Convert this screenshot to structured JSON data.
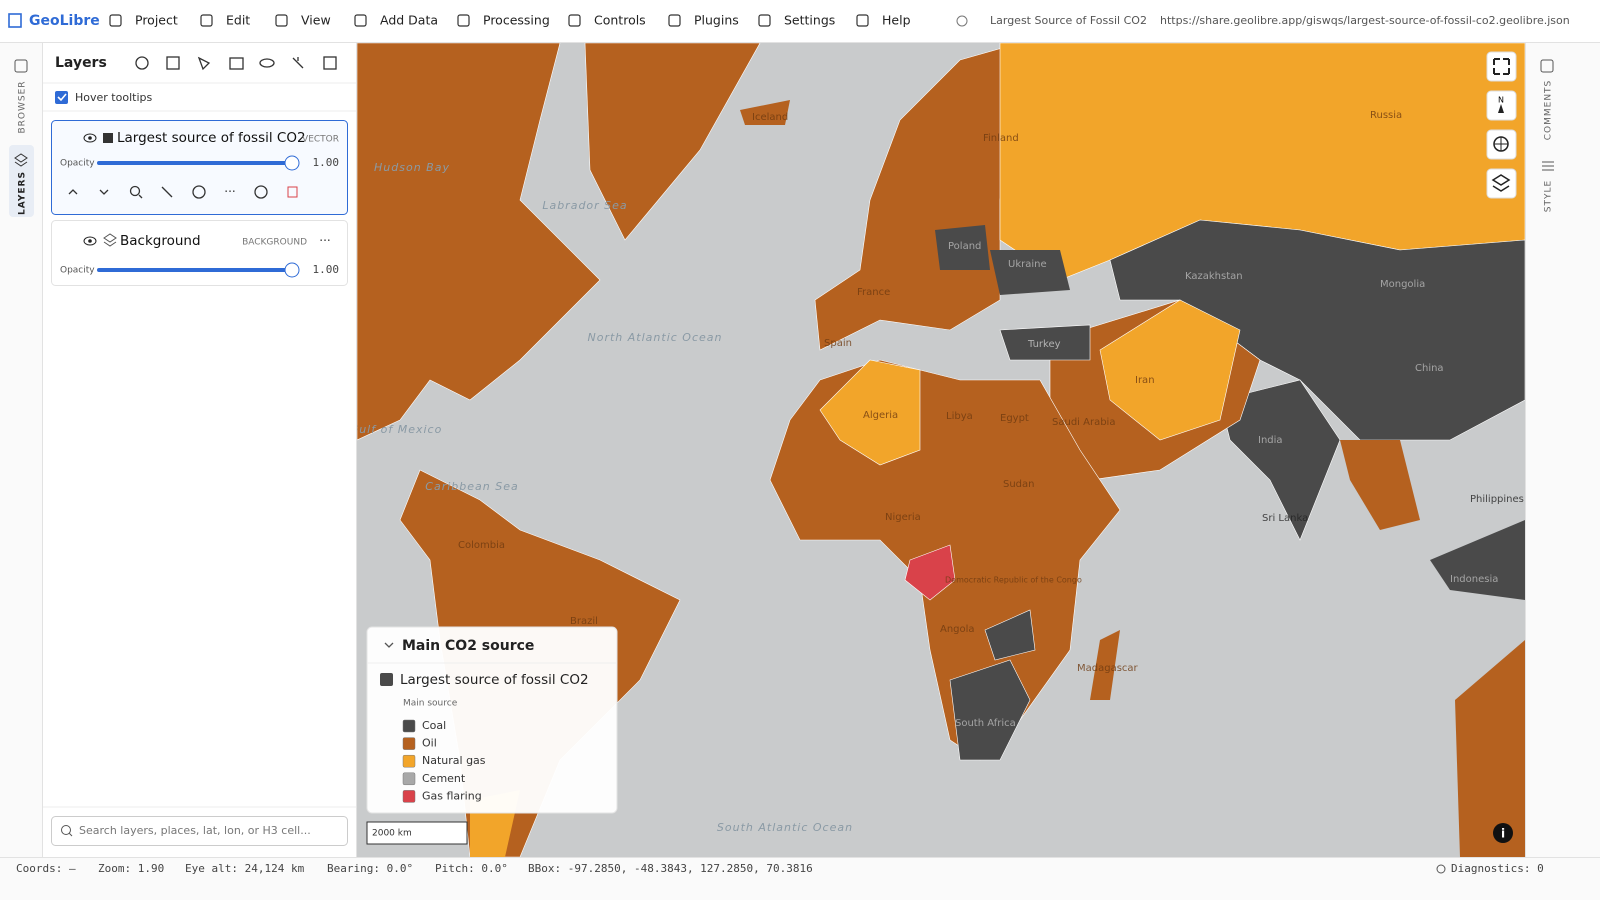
{
  "app": {
    "name": "GeoLibre",
    "title": "Largest Source of Fossil CO2",
    "url": "https://share.geolibre.app/giswqs/largest-source-of-fossil-co2.geolibre.json"
  },
  "menu": [
    "Project",
    "Edit",
    "View",
    "Add Data",
    "Processing",
    "Controls",
    "Plugins",
    "Settings",
    "Help"
  ],
  "side_tabs": {
    "left": [
      "BROWSER",
      "LAYERS"
    ],
    "right": [
      "COMMENTS",
      "STYLE"
    ]
  },
  "layers_panel": {
    "title": "Layers",
    "hover_tooltips": "Hover tooltips",
    "layers": [
      {
        "name": "Largest source of fossil CO2",
        "kind": "VECTOR",
        "opacity_label": "Opacity",
        "opacity": "1.00"
      },
      {
        "name": "Background",
        "kind": "BACKGROUND",
        "opacity_label": "Opacity",
        "opacity": "1.00"
      }
    ],
    "search_placeholder": "Search layers, places, lat, lon, or H3 cell..."
  },
  "legend": {
    "title": "Main CO2 source",
    "layer": "Largest source of fossil CO2",
    "subtitle": "Main source",
    "items": [
      {
        "label": "Coal",
        "color": "#4a4a4a"
      },
      {
        "label": "Oil",
        "color": "#b5611f"
      },
      {
        "label": "Natural gas",
        "color": "#f2a52a"
      },
      {
        "label": "Cement",
        "color": "#a8a8a8"
      },
      {
        "label": "Gas flaring",
        "color": "#d9424a"
      }
    ]
  },
  "map": {
    "scale": "2000 km",
    "labels": [
      "Hudson Bay",
      "Labrador Sea",
      "North Atlantic Ocean",
      "Gulf of Mexico",
      "Caribbean Sea",
      "South Atlantic Ocean",
      "Russia",
      "Kazakhstan",
      "Mongolia",
      "China",
      "India",
      "Iran",
      "Turkey",
      "Saudi Arabia",
      "Egypt",
      "Algeria",
      "Libya",
      "Nigeria",
      "Sudan",
      "Democratic Republic of the Congo",
      "Angola",
      "Brazil",
      "Colombia",
      "Spain",
      "France",
      "Poland",
      "Ukraine",
      "Sri Lanka",
      "Indonesia",
      "Philippines",
      "Madagascar",
      "South Africa",
      "Iceland",
      "Finland"
    ]
  },
  "status": {
    "coords": "Coords: —",
    "zoom": "Zoom: 1.90",
    "eye_alt": "Eye alt: 24,124 km",
    "bearing": "Bearing: 0.0°",
    "pitch": "Pitch: 0.0°",
    "bbox": "BBox: -97.2850, -48.3843, 127.2850, 70.3816",
    "diagnostics": "Diagnostics: 0"
  }
}
